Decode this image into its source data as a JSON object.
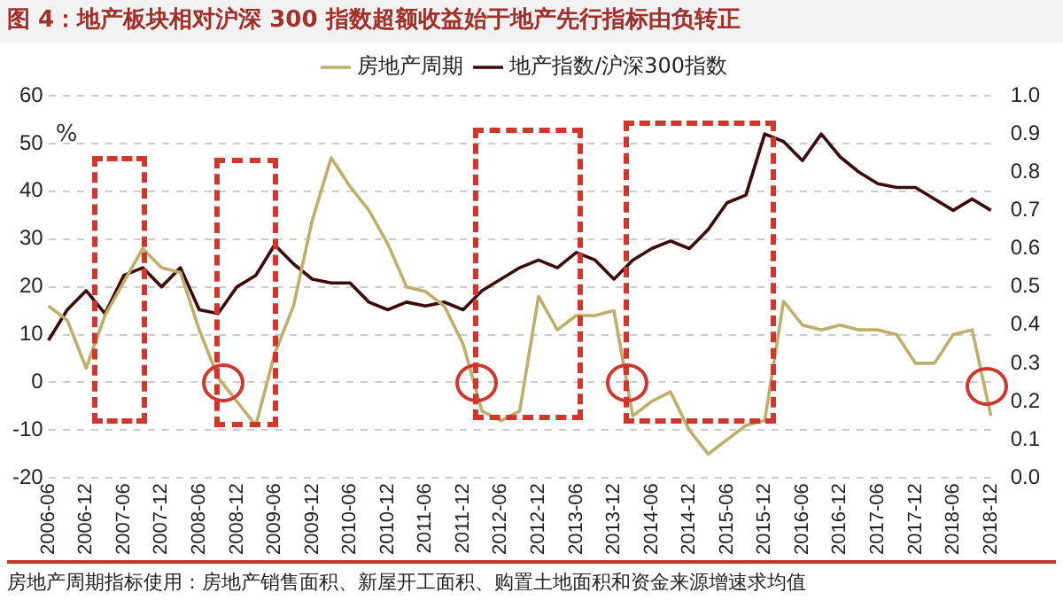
{
  "chart_data": {
    "type": "line",
    "title": "图 4：地产板块相对沪深 300 指数超额收益始于地产先行指标由负转正",
    "ylabel": "%",
    "annotations": [
      "房地产周期指标使用：房地产销售面积、新屋开工面积、购置土地面积和资金来源增速求均值"
    ],
    "categories": [
      "2006-06",
      null,
      "2006-12",
      null,
      "2007-06",
      null,
      "2007-12",
      null,
      "2008-06",
      null,
      "2008-12",
      null,
      "2009-06",
      null,
      "2009-12",
      null,
      "2010-06",
      null,
      "2010-12",
      null,
      "2011-06",
      null,
      "2011-12",
      null,
      "2012-06",
      null,
      "2012-12",
      null,
      "2013-06",
      null,
      "2013-12",
      null,
      "2014-06",
      null,
      "2014-12",
      null,
      "2015-06",
      null,
      "2015-12",
      null,
      "2016-06",
      null,
      "2016-12",
      null,
      "2017-06",
      null,
      "2017-12",
      null,
      "2018-06",
      null,
      "2018-12"
    ],
    "series": [
      {
        "name": "房地产周期",
        "color": "#bfae6a",
        "values": [
          16,
          13,
          3,
          14,
          21,
          28,
          24,
          23,
          11,
          1,
          -4,
          -9,
          6,
          16,
          34,
          47,
          41,
          36,
          29,
          20,
          19,
          16,
          8,
          -6,
          -8,
          -6,
          18,
          11,
          14,
          14,
          15,
          -7,
          -4,
          -2,
          -10,
          -15,
          -12,
          -9,
          -8,
          17,
          12,
          11,
          12,
          11,
          11,
          10,
          4,
          4,
          10,
          11,
          -7
        ]
      },
      {
        "name": "地产指数/沪深300指数",
        "color": "#3d0a0a",
        "axis": "y2",
        "values": [
          0.36,
          0.44,
          0.49,
          0.43,
          0.53,
          0.55,
          0.5,
          0.55,
          0.44,
          0.43,
          0.5,
          0.53,
          0.61,
          0.56,
          0.52,
          0.51,
          0.51,
          0.46,
          0.44,
          0.46,
          0.45,
          0.46,
          0.44,
          0.49,
          0.52,
          0.55,
          0.57,
          0.55,
          0.59,
          0.57,
          0.52,
          0.57,
          0.6,
          0.62,
          0.6,
          0.65,
          0.72,
          0.74,
          0.9,
          0.88,
          0.83,
          0.9,
          0.84,
          0.8,
          0.77,
          0.76,
          0.76,
          0.73,
          0.7,
          0.73,
          0.7
        ]
      }
    ],
    "ylim": [
      -20,
      60
    ],
    "yticks": [
      -20,
      -10,
      0,
      10,
      20,
      30,
      40,
      50,
      60
    ],
    "y2lim": [
      0,
      1
    ],
    "y2ticks": [
      {
        "value": 0,
        "label": "0.0"
      },
      0.1,
      0.2,
      0.3,
      0.4,
      0.5,
      0.6,
      0.7,
      0.8,
      0.9,
      {
        "value": 1,
        "label": "1.0"
      }
    ],
    "grid": "y",
    "legend": "top",
    "marker": "none"
  }
}
